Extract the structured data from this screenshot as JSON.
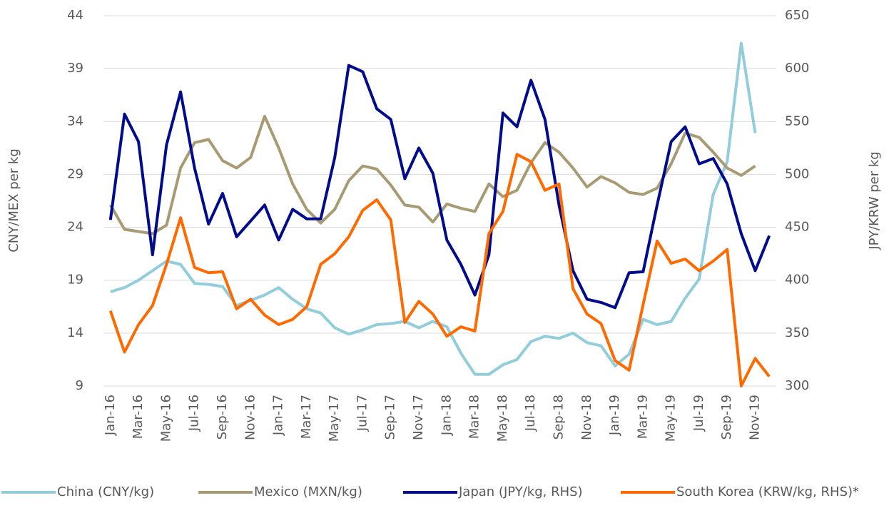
{
  "chart_data": {
    "type": "line",
    "y_label": "CNY/MEX per kg",
    "y2_label": "JPY/KRW per kg",
    "categories": [
      "Jan-16",
      null,
      "Mar-16",
      null,
      "May-16",
      null,
      "Jul-16",
      null,
      "Sep-16",
      null,
      "Nov-16",
      null,
      "Jan-17",
      null,
      "Mar-17",
      null,
      "May-17",
      null,
      "Jul-17",
      null,
      "Sep-17",
      null,
      "Nov-17",
      null,
      "Jan-18",
      null,
      "Mar-18",
      null,
      "May-18",
      null,
      "Jul-18",
      null,
      "Sep-18",
      null,
      "Nov-18",
      null,
      "Jan-19",
      null,
      "Mar-19",
      null,
      "May-19",
      null,
      "Jul-19",
      null,
      "Sep-19",
      null,
      "Nov-19",
      null
    ],
    "series": [
      {
        "name": "China (CNY/kg)",
        "color": "#92cddc",
        "values": [
          17.9,
          18.3,
          19.0,
          19.9,
          20.8,
          20.5,
          18.7,
          18.6,
          18.4,
          16.6,
          17.1,
          17.6,
          18.3,
          17.2,
          16.3,
          15.9,
          14.5,
          13.9,
          14.3,
          14.8,
          14.9,
          15.1,
          14.5,
          15.1,
          14.6,
          12.1,
          10.1,
          10.1,
          11.0,
          11.5,
          13.2,
          13.7,
          13.5,
          14.0,
          13.1,
          12.8,
          10.9,
          12.0,
          15.3,
          14.8,
          15.1,
          17.3,
          19.1,
          27.1,
          30.2,
          41.4,
          32.9,
          null
        ]
      },
      {
        "name": "Mexico (MXN/kg)",
        "color": "#a89b73",
        "values": [
          26.1,
          23.8,
          23.6,
          23.4,
          24.2,
          29.6,
          32.0,
          32.3,
          30.3,
          29.6,
          30.6,
          34.5,
          31.5,
          28.1,
          25.7,
          24.4,
          25.7,
          28.4,
          29.8,
          29.5,
          28.0,
          26.1,
          25.9,
          24.5,
          26.2,
          25.8,
          25.5,
          28.1,
          26.9,
          27.5,
          30.1,
          32.0,
          31.1,
          29.6,
          27.8,
          28.8,
          28.2,
          27.3,
          27.1,
          27.7,
          30.0,
          32.9,
          32.5,
          31.1,
          29.6,
          28.9,
          29.8,
          null
        ]
      },
      {
        "name": "Japan (JPY/kg, RHS)",
        "color": "#000c8c",
        "axis": "y2",
        "values": [
          457,
          557,
          531,
          424,
          528,
          578,
          506,
          453,
          482,
          441,
          456,
          471,
          438,
          467,
          458,
          458,
          516,
          603,
          597,
          562,
          552,
          496,
          525,
          501,
          438,
          415,
          386,
          424,
          558,
          545,
          589,
          552,
          471,
          409,
          382,
          379,
          374,
          407,
          408,
          471,
          531,
          545,
          510,
          515,
          491,
          444,
          409,
          442
        ]
      },
      {
        "name": "South Korea (KRW/kg, RHS)*",
        "color": "#ff6a00",
        "axis": "y2",
        "values": [
          371,
          332,
          358,
          376,
          415,
          459,
          412,
          407,
          408,
          373,
          382,
          367,
          358,
          363,
          375,
          415,
          425,
          441,
          466,
          476,
          457,
          360,
          380,
          368,
          347,
          356,
          352,
          444,
          465,
          519,
          512,
          485,
          491,
          392,
          368,
          359,
          324,
          315,
          377,
          437,
          416,
          420,
          409,
          418,
          429,
          300,
          326,
          309
        ]
      }
    ],
    "ylim": [
      9,
      44
    ],
    "yticks": [
      9,
      14,
      19,
      24,
      29,
      34,
      39,
      44
    ],
    "y2lim": [
      300,
      650
    ],
    "y2ticks": [
      300,
      350,
      400,
      450,
      500,
      550,
      600,
      650
    ],
    "grid": true,
    "legend": "bottom"
  }
}
